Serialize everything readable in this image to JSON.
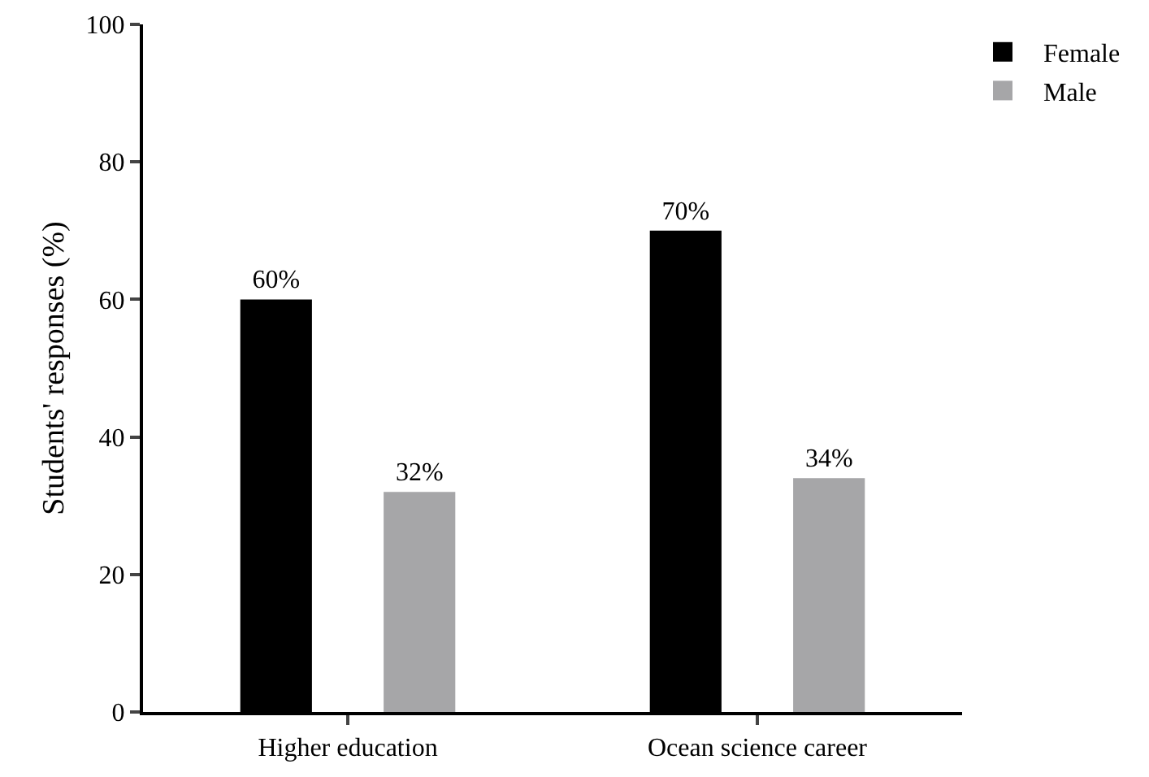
{
  "chart_data": {
    "type": "bar",
    "ylabel": "Students' responses (%)",
    "categories": [
      "Higher education",
      "Ocean science career"
    ],
    "series": [
      {
        "name": "Female",
        "color": "#000000",
        "values": [
          60,
          70
        ],
        "value_labels": [
          "60%",
          "70%"
        ]
      },
      {
        "name": "Male",
        "color": "#a6a6a8",
        "values": [
          32,
          34
        ],
        "value_labels": [
          "32%",
          "34%"
        ]
      }
    ],
    "ylim": [
      0,
      100
    ],
    "yticks": [
      0,
      20,
      40,
      60,
      80,
      100
    ],
    "grid": false,
    "legend": "top right"
  }
}
